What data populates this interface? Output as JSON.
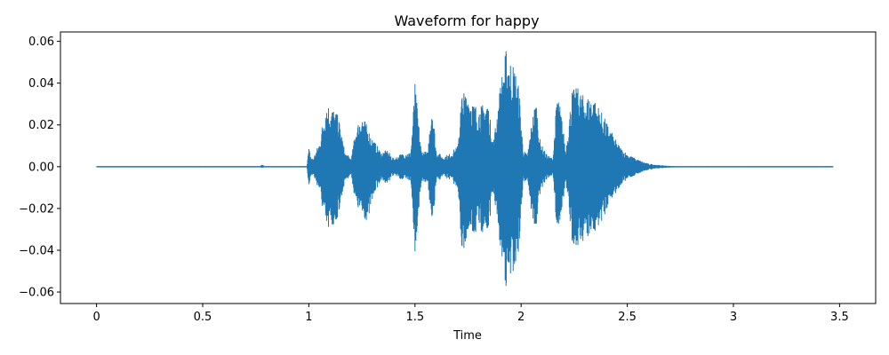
{
  "chart_data": {
    "type": "line",
    "title": "Waveform for happy",
    "xlabel": "Time",
    "ylabel": "",
    "xlim": [
      -0.17,
      3.67
    ],
    "ylim": [
      -0.0655,
      0.0645
    ],
    "x_ticks": [
      0,
      0.5,
      1,
      1.5,
      2,
      2.5,
      3,
      3.5
    ],
    "x_tick_labels": [
      "0",
      "0.5",
      "1",
      "1.5",
      "2",
      "2.5",
      "3",
      "3.5"
    ],
    "y_ticks": [
      -0.06,
      -0.04,
      -0.02,
      0.0,
      0.02,
      0.04,
      0.06
    ],
    "y_tick_labels": [
      "−0.06",
      "−0.04",
      "−0.02",
      "0.00",
      "0.02",
      "0.04",
      "0.06"
    ],
    "grid": false,
    "line_color": "#1f77b4",
    "series": [
      {
        "x_start": 0,
        "x_end": 3.47,
        "envelope": {
          "x": [
            0,
            0.77,
            0.78,
            0.79,
            0.99,
            1.0,
            1.01,
            1.02,
            1.05,
            1.08,
            1.11,
            1.14,
            1.17,
            1.2,
            1.22,
            1.25,
            1.28,
            1.31,
            1.34,
            1.37,
            1.4,
            1.43,
            1.46,
            1.48,
            1.5,
            1.53,
            1.56,
            1.58,
            1.6,
            1.63,
            1.66,
            1.7,
            1.72,
            1.75,
            1.78,
            1.81,
            1.84,
            1.87,
            1.89,
            1.91,
            1.93,
            1.95,
            1.97,
            1.99,
            2.01,
            2.03,
            2.05,
            2.07,
            2.09,
            2.12,
            2.15,
            2.17,
            2.19,
            2.21,
            2.24,
            2.27,
            2.3,
            2.33,
            2.36,
            2.39,
            2.42,
            2.45,
            2.48,
            2.52,
            2.56,
            2.6,
            2.65,
            2.7,
            2.75,
            3.47
          ],
          "upper": [
            0.0002,
            0.0002,
            0.0012,
            0.0002,
            0.0002,
            0.009,
            0.005,
            0.004,
            0.012,
            0.031,
            0.029,
            0.024,
            0.007,
            0.004,
            0.018,
            0.026,
            0.018,
            0.012,
            0.007,
            0.008,
            0.004,
            0.006,
            0.007,
            0.007,
            0.04,
            0.008,
            0.007,
            0.033,
            0.008,
            0.005,
            0.006,
            0.01,
            0.035,
            0.037,
            0.03,
            0.029,
            0.033,
            0.012,
            0.03,
            0.045,
            0.057,
            0.052,
            0.048,
            0.038,
            0.008,
            0.006,
            0.022,
            0.033,
            0.012,
            0.006,
            0.004,
            0.037,
            0.025,
            0.008,
            0.037,
            0.038,
            0.033,
            0.035,
            0.03,
            0.024,
            0.018,
            0.012,
            0.008,
            0.005,
            0.003,
            0.0015,
            0.0008,
            0.0004,
            0.0002,
            0.0002
          ],
          "lower": [
            -0.0002,
            -0.0002,
            -0.0006,
            -0.0002,
            -0.0002,
            -0.009,
            -0.005,
            -0.004,
            -0.012,
            -0.031,
            -0.031,
            -0.023,
            -0.007,
            -0.004,
            -0.018,
            -0.025,
            -0.026,
            -0.012,
            -0.007,
            -0.008,
            -0.004,
            -0.006,
            -0.007,
            -0.007,
            -0.041,
            -0.008,
            -0.007,
            -0.034,
            -0.008,
            -0.005,
            -0.006,
            -0.01,
            -0.041,
            -0.037,
            -0.033,
            -0.031,
            -0.035,
            -0.012,
            -0.03,
            -0.045,
            -0.059,
            -0.055,
            -0.05,
            -0.04,
            -0.008,
            -0.006,
            -0.024,
            -0.032,
            -0.012,
            -0.006,
            -0.004,
            -0.033,
            -0.022,
            -0.008,
            -0.037,
            -0.038,
            -0.035,
            -0.035,
            -0.03,
            -0.024,
            -0.016,
            -0.012,
            -0.008,
            -0.005,
            -0.003,
            -0.0015,
            -0.0008,
            -0.0004,
            -0.0002,
            -0.0002
          ]
        }
      }
    ]
  }
}
